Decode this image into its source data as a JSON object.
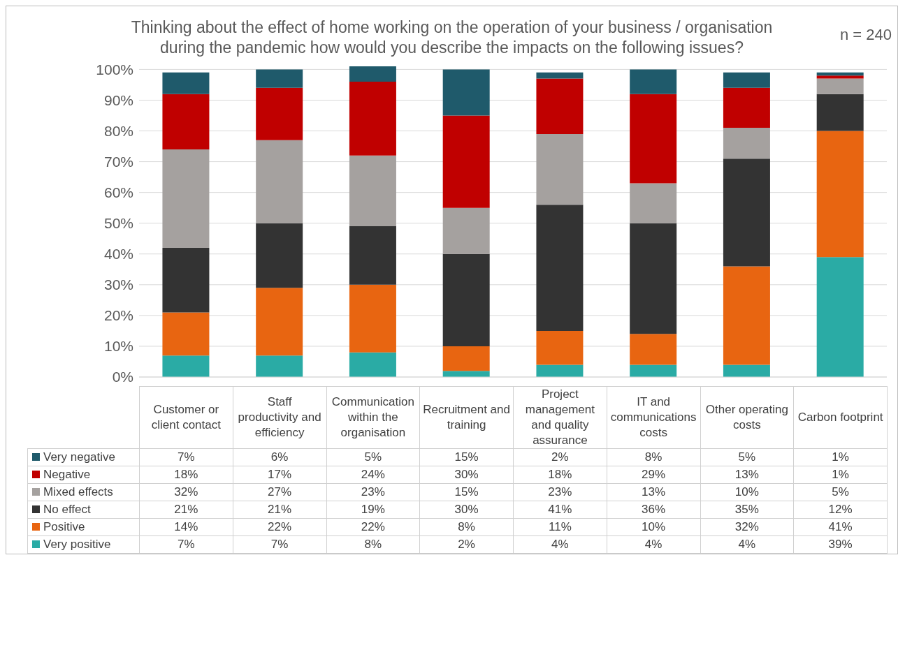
{
  "chart_data": {
    "type": "bar",
    "stacked": true,
    "title": "Thinking about the effect of home working on the operation of your business / organisation during the pandemic how would you describe the impacts on the following issues?",
    "annotations": [
      "n = 240"
    ],
    "categories": [
      "Customer or client contact",
      "Staff productivity and efficiency",
      "Communication within the organisation",
      "Recruitment and training",
      "Project management and quality assurance",
      "IT and communications costs",
      "Other operating costs",
      "Carbon footprint"
    ],
    "series": [
      {
        "name": "Very positive",
        "color": "#2aaba5",
        "values": [
          7,
          7,
          8,
          2,
          4,
          4,
          4,
          39
        ],
        "value_labels": [
          "7%",
          "7%",
          "8%",
          "2%",
          "4%",
          "4%",
          "4%",
          "39%"
        ]
      },
      {
        "name": "Positive",
        "color": "#e86511",
        "values": [
          14,
          22,
          22,
          8,
          11,
          10,
          32,
          41
        ],
        "value_labels": [
          "14%",
          "22%",
          "22%",
          "8%",
          "11%",
          "10%",
          "32%",
          "41%"
        ]
      },
      {
        "name": "No effect",
        "color": "#333333",
        "values": [
          21,
          21,
          19,
          30,
          41,
          36,
          35,
          12
        ],
        "value_labels": [
          "21%",
          "21%",
          "19%",
          "30%",
          "41%",
          "36%",
          "35%",
          "12%"
        ]
      },
      {
        "name": "Mixed effects",
        "color": "#a5a19f",
        "values": [
          32,
          27,
          23,
          15,
          23,
          13,
          10,
          5
        ],
        "value_labels": [
          "32%",
          "27%",
          "23%",
          "15%",
          "23%",
          "13%",
          "10%",
          "5%"
        ]
      },
      {
        "name": "Negative",
        "color": "#c00000",
        "values": [
          18,
          17,
          24,
          30,
          18,
          29,
          13,
          1
        ],
        "value_labels": [
          "18%",
          "17%",
          "24%",
          "30%",
          "18%",
          "29%",
          "13%",
          "1%"
        ]
      },
      {
        "name": "Very negative",
        "color": "#1f5a6b",
        "values": [
          7,
          6,
          5,
          15,
          2,
          8,
          5,
          1
        ],
        "value_labels": [
          "7%",
          "6%",
          "5%",
          "15%",
          "2%",
          "8%",
          "5%",
          "1%"
        ]
      }
    ],
    "ylim": [
      0,
      101
    ],
    "yticks": [
      {
        "value": 0,
        "label": "0%"
      },
      {
        "value": 10,
        "label": "10%"
      },
      {
        "value": 20,
        "label": "20%"
      },
      {
        "value": 30,
        "label": "30%"
      },
      {
        "value": 40,
        "label": "40%"
      },
      {
        "value": 50,
        "label": "50%"
      },
      {
        "value": 60,
        "label": "60%"
      },
      {
        "value": 70,
        "label": "70%"
      },
      {
        "value": 80,
        "label": "80%"
      },
      {
        "value": 90,
        "label": "90%"
      },
      {
        "value": 100,
        "label": "100%"
      }
    ],
    "grid": "y",
    "legend": "bottom"
  }
}
